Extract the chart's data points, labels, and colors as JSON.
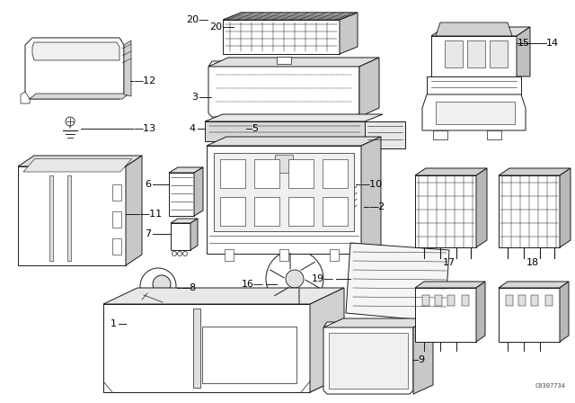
{
  "background_color": "#ffffff",
  "line_color": "#1a1a1a",
  "watermark": "C0307734",
  "figsize": [
    6.4,
    4.48
  ],
  "dpi": 100
}
